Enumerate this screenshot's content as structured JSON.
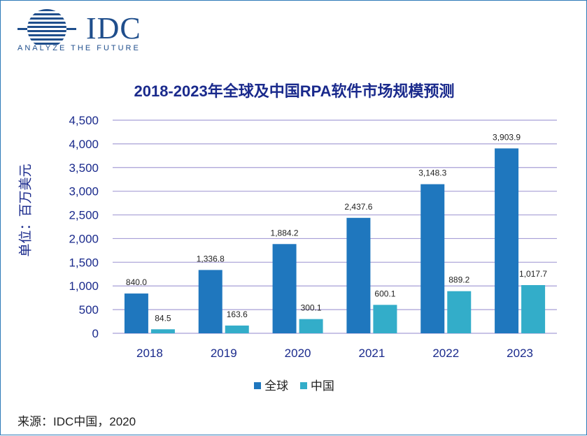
{
  "logo": {
    "brand": "IDC",
    "tagline": "ANALYZE THE FUTURE"
  },
  "source": "来源：IDC中国，2020",
  "colors": {
    "global": "#1f77be",
    "china": "#33adc9",
    "grid": "#a79fd6",
    "axis_text": "#1a2a8c"
  },
  "chart_data": {
    "type": "bar",
    "title": "2018-2023年全球及中国RPA软件市场规模预测",
    "ylabel": "单位：百万美元",
    "xlabel": "",
    "categories": [
      "2018",
      "2019",
      "2020",
      "2021",
      "2022",
      "2023"
    ],
    "series": [
      {
        "name": "全球",
        "values": [
          840.0,
          1336.8,
          1884.2,
          2437.6,
          3148.3,
          3903.9
        ],
        "labels": [
          "840.0",
          "1,336.8",
          "1,884.2",
          "2,437.6",
          "3,148.3",
          "3,903.9"
        ]
      },
      {
        "name": "中国",
        "values": [
          84.5,
          163.6,
          300.1,
          600.1,
          889.2,
          1017.7
        ],
        "labels": [
          "84.5",
          "163.6",
          "300.1",
          "600.1",
          "889.2",
          "1,017.7"
        ]
      }
    ],
    "ylim": [
      0,
      4500
    ],
    "yticks": [
      0,
      500,
      1000,
      1500,
      2000,
      2500,
      3000,
      3500,
      4000,
      4500
    ],
    "ytick_labels": [
      "0",
      "500",
      "1,000",
      "1,500",
      "2,000",
      "2,500",
      "3,000",
      "3,500",
      "4,000",
      "4,500"
    ],
    "grid": true,
    "legend_position": "bottom"
  }
}
